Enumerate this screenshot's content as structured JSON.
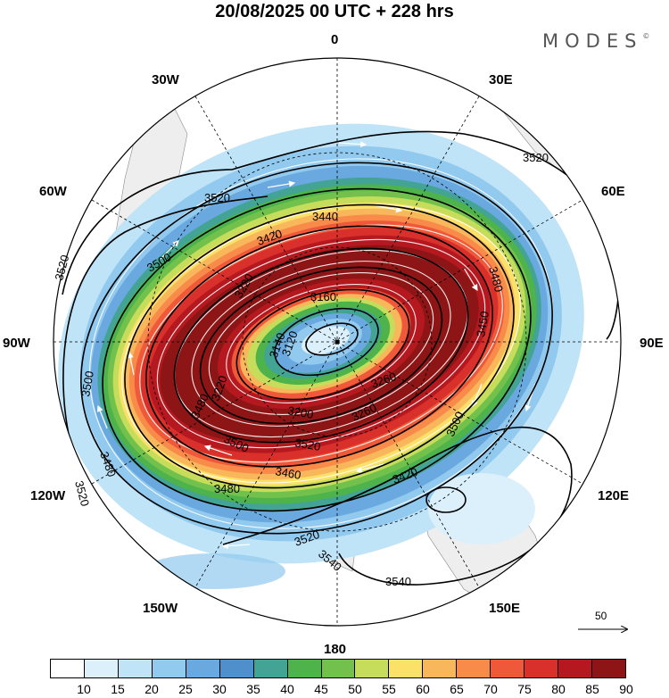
{
  "title": "20/08/2025  00 UTC  + 228 hrs",
  "brand": {
    "text": "MODES",
    "mark": "©"
  },
  "longitude_labels": {
    "0": "0",
    "30E": "30E",
    "60E": "60E",
    "90E": "90E",
    "120E": "120E",
    "150E": "150E",
    "180": "180",
    "150W": "150W",
    "120W": "120W",
    "90W": "90W",
    "60W": "60W",
    "30W": "30W"
  },
  "contour_labels": [
    "3520",
    "3520",
    "3520",
    "3520",
    "3520",
    "3540",
    "3540",
    "3500",
    "3500",
    "3480",
    "3480",
    "3480",
    "3450",
    "3500",
    "3440",
    "3420",
    "3160",
    "3140",
    "3220",
    "3220",
    "3260",
    "3200",
    "3260",
    "3420",
    "3460",
    "3480",
    "3520",
    "3500",
    "3120"
  ],
  "reference_vector": {
    "label": "50"
  },
  "colorbar": {
    "colors": [
      "#ffffff",
      "#dcf0fc",
      "#bfe3f7",
      "#92c9ee",
      "#69a9df",
      "#4f8fcb",
      "#43a394",
      "#4db34a",
      "#72c14d",
      "#c6dc5b",
      "#fce169",
      "#f9b75b",
      "#f88a4a",
      "#ef5838",
      "#d9302c",
      "#b5191f",
      "#8e1515"
    ],
    "ticks": [
      "10",
      "15",
      "20",
      "25",
      "30",
      "35",
      "40",
      "45",
      "50",
      "55",
      "60",
      "65",
      "70",
      "75",
      "80",
      "85",
      "90"
    ]
  }
}
